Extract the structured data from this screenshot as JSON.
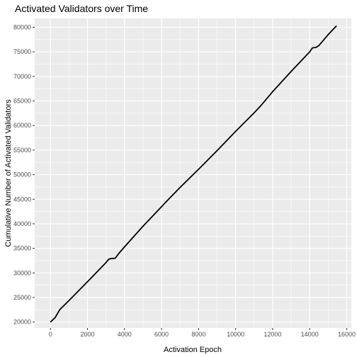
{
  "chart_data": {
    "type": "line",
    "title": "Activated Validators over Time",
    "xlabel": "Activation Epoch",
    "ylabel": "Cumulative Number of Activated Validators",
    "xlim": [
      -850,
      16250
    ],
    "ylim": [
      18800,
      81800
    ],
    "x_ticks": [
      0,
      2000,
      4000,
      6000,
      8000,
      10000,
      12000,
      14000,
      16000
    ],
    "y_ticks": [
      20000,
      25000,
      30000,
      35000,
      40000,
      45000,
      50000,
      55000,
      60000,
      65000,
      70000,
      75000,
      80000
    ],
    "x_tick_labels": [
      "0",
      "2000",
      "4000",
      "6000",
      "8000",
      "10000",
      "12000",
      "14000",
      "16000"
    ],
    "y_tick_labels": [
      "20000",
      "25000",
      "30000",
      "35000",
      "40000",
      "45000",
      "50000",
      "55000",
      "60000",
      "65000",
      "70000",
      "75000",
      "80000"
    ],
    "grid": true,
    "panel_color": "#ebebeb",
    "grid_color": "#ffffff",
    "line_color": "#000000",
    "series": [
      {
        "x": [
          0,
          250,
          500,
          1000,
          2000,
          3000,
          3150,
          3250,
          3500,
          3700,
          4000,
          5000,
          6000,
          6200,
          7000,
          8000,
          9000,
          10000,
          11000,
          11400,
          12000,
          13000,
          14000,
          14150,
          14350,
          14500,
          15000,
          15450
        ],
        "y": [
          20000,
          20900,
          22500,
          24400,
          28200,
          32100,
          32800,
          32900,
          33000,
          34000,
          35300,
          39500,
          43500,
          44300,
          47400,
          51100,
          54900,
          58800,
          62600,
          64200,
          66900,
          71000,
          75000,
          75800,
          75900,
          76300,
          78500,
          80300
        ]
      }
    ]
  }
}
